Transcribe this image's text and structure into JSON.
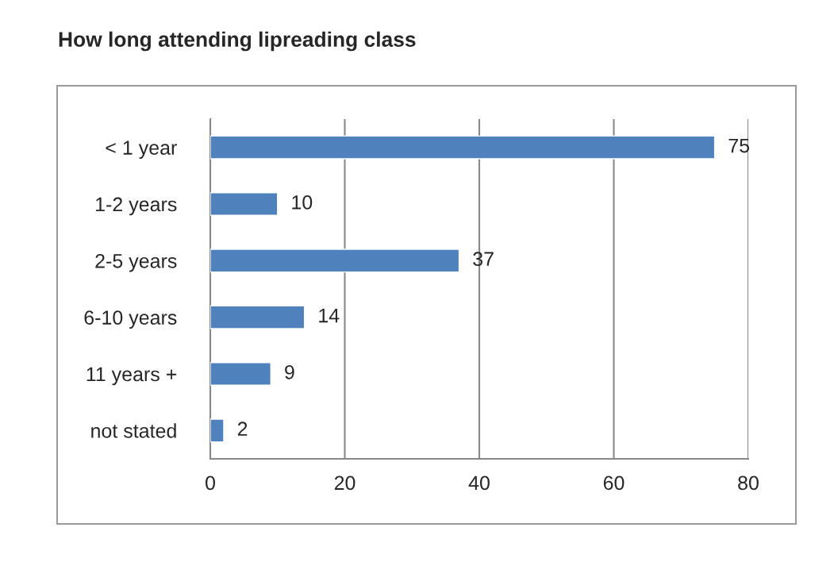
{
  "chart_data": {
    "type": "bar",
    "orientation": "horizontal",
    "title": "How long attending lipreading class",
    "categories": [
      "< 1 year",
      "1-2 years",
      "2-5 years",
      "6-10 years",
      "11 years +",
      "not stated"
    ],
    "values": [
      75,
      10,
      37,
      14,
      9,
      2
    ],
    "color": "#4f81bd",
    "xlim": [
      0,
      80
    ],
    "xticks": [
      0,
      20,
      40,
      60,
      80
    ],
    "grid": "x",
    "data_labels": true
  }
}
